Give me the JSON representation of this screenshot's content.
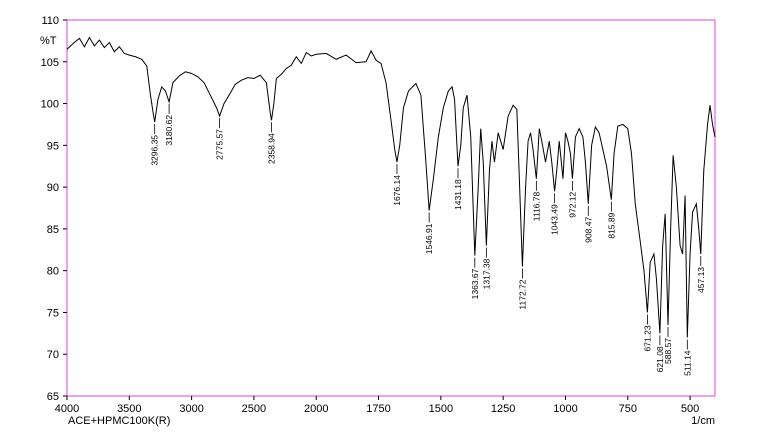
{
  "chart_data": {
    "type": "line",
    "y_label": "%T",
    "x_label": "1/cm",
    "sample_label": "ACE+HPMC100K(R)",
    "xlim": [
      4000,
      400
    ],
    "ylim": [
      65,
      110
    ],
    "x_scale_change": {
      "at": 2000,
      "factor": 2
    },
    "xticks": [
      4000,
      3500,
      3000,
      2500,
      2000,
      1750,
      1500,
      1250,
      1000,
      750,
      500
    ],
    "yticks": [
      65,
      70,
      75,
      80,
      85,
      90,
      95,
      100,
      105,
      110
    ],
    "frame_color": "#e040e0",
    "x": [
      4000,
      3950,
      3900,
      3860,
      3820,
      3780,
      3740,
      3700,
      3660,
      3620,
      3580,
      3540,
      3500,
      3450,
      3400,
      3360,
      3330,
      3310,
      3296.35,
      3270,
      3240,
      3210,
      3180.62,
      3150,
      3100,
      3050,
      3000,
      2950,
      2900,
      2850,
      2800,
      2775.57,
      2740,
      2700,
      2650,
      2600,
      2550,
      2500,
      2450,
      2400,
      2370,
      2358.94,
      2340,
      2320,
      2280,
      2240,
      2200,
      2160,
      2120,
      2080,
      2040,
      2000,
      1960,
      1920,
      1880,
      1840,
      1800,
      1780,
      1760,
      1740,
      1720,
      1700,
      1685,
      1676.14,
      1665,
      1650,
      1630,
      1600,
      1580,
      1560,
      1546.91,
      1530,
      1510,
      1490,
      1470,
      1455,
      1445,
      1431.18,
      1420,
      1410,
      1395,
      1380,
      1363.67,
      1350,
      1340,
      1330,
      1317.38,
      1305,
      1295,
      1285,
      1270,
      1250,
      1230,
      1210,
      1195,
      1185,
      1172.72,
      1160,
      1150,
      1140,
      1130,
      1116.78,
      1105,
      1095,
      1080,
      1065,
      1055,
      1043.49,
      1035,
      1025,
      1010,
      1000,
      990,
      980,
      972.12,
      960,
      945,
      930,
      920,
      908.47,
      895,
      880,
      865,
      850,
      835,
      815.89,
      805,
      790,
      770,
      750,
      735,
      720,
      700,
      685,
      671.23,
      660,
      645,
      635,
      621.08,
      610,
      600,
      595,
      588.57,
      578,
      568,
      555,
      540,
      530,
      520,
      511.14,
      500,
      490,
      475,
      465,
      457.13,
      445,
      430,
      420,
      410,
      400
    ],
    "series": [
      {
        "color": "#000000",
        "values": [
          106.5,
          107.2,
          107.8,
          106.8,
          107.9,
          106.9,
          107.6,
          106.7,
          107.3,
          106.2,
          106.8,
          106.0,
          105.8,
          105.6,
          105.3,
          104.5,
          101,
          99,
          97.8,
          100.5,
          102,
          101.5,
          100.2,
          102.5,
          103.3,
          103.8,
          103.6,
          103.2,
          102.5,
          101,
          99.5,
          98.5,
          100,
          101,
          102.3,
          102.8,
          103.1,
          103,
          103.4,
          102.5,
          99,
          98,
          100,
          103,
          103.5,
          104.2,
          104.6,
          105.6,
          104.8,
          106.1,
          105.7,
          105.9,
          106.0,
          105.3,
          105.8,
          104.9,
          105.0,
          106.3,
          105.2,
          104.8,
          102.5,
          98,
          94.5,
          93,
          95,
          99.5,
          101.5,
          102.4,
          101,
          93,
          87.2,
          91,
          96,
          99.5,
          101.5,
          102,
          100.5,
          92.5,
          95,
          99.5,
          101,
          96,
          81.8,
          90,
          97,
          93,
          83,
          92,
          95.5,
          93,
          96.5,
          94.5,
          98.5,
          99.8,
          99.3,
          91,
          80.5,
          90,
          95.5,
          96.5,
          94.5,
          91,
          97,
          95.5,
          93,
          95.5,
          93,
          89.5,
          92,
          95.5,
          91,
          96.5,
          95.5,
          94,
          91,
          96,
          97,
          96,
          93,
          88,
          95,
          97.2,
          96.5,
          94.5,
          92.5,
          88.5,
          94,
          97.3,
          97.5,
          97,
          94,
          88,
          83.5,
          80,
          75,
          81,
          82,
          79,
          72.5,
          83,
          86.8,
          81,
          73.5,
          85,
          93.8,
          90,
          83,
          82,
          89,
          72,
          82,
          87,
          88,
          85,
          82,
          92,
          97.5,
          99.8,
          97.5,
          96
        ]
      }
    ],
    "peaks": [
      {
        "x": 3296.35,
        "y": 97.8
      },
      {
        "x": 3180.62,
        "y": 100.2
      },
      {
        "x": 2775.57,
        "y": 98.5
      },
      {
        "x": 2358.94,
        "y": 98
      },
      {
        "x": 1676.14,
        "y": 93
      },
      {
        "x": 1546.91,
        "y": 87.2
      },
      {
        "x": 1431.18,
        "y": 92.5
      },
      {
        "x": 1363.67,
        "y": 81.8
      },
      {
        "x": 1317.38,
        "y": 83
      },
      {
        "x": 1172.72,
        "y": 80.5
      },
      {
        "x": 1116.78,
        "y": 91
      },
      {
        "x": 1043.49,
        "y": 89.5
      },
      {
        "x": 972.12,
        "y": 91
      },
      {
        "x": 908.47,
        "y": 88
      },
      {
        "x": 815.89,
        "y": 88.5
      },
      {
        "x": 671.23,
        "y": 75
      },
      {
        "x": 621.08,
        "y": 72.5
      },
      {
        "x": 588.57,
        "y": 73.5
      },
      {
        "x": 511.14,
        "y": 72
      },
      {
        "x": 457.13,
        "y": 82
      }
    ]
  }
}
